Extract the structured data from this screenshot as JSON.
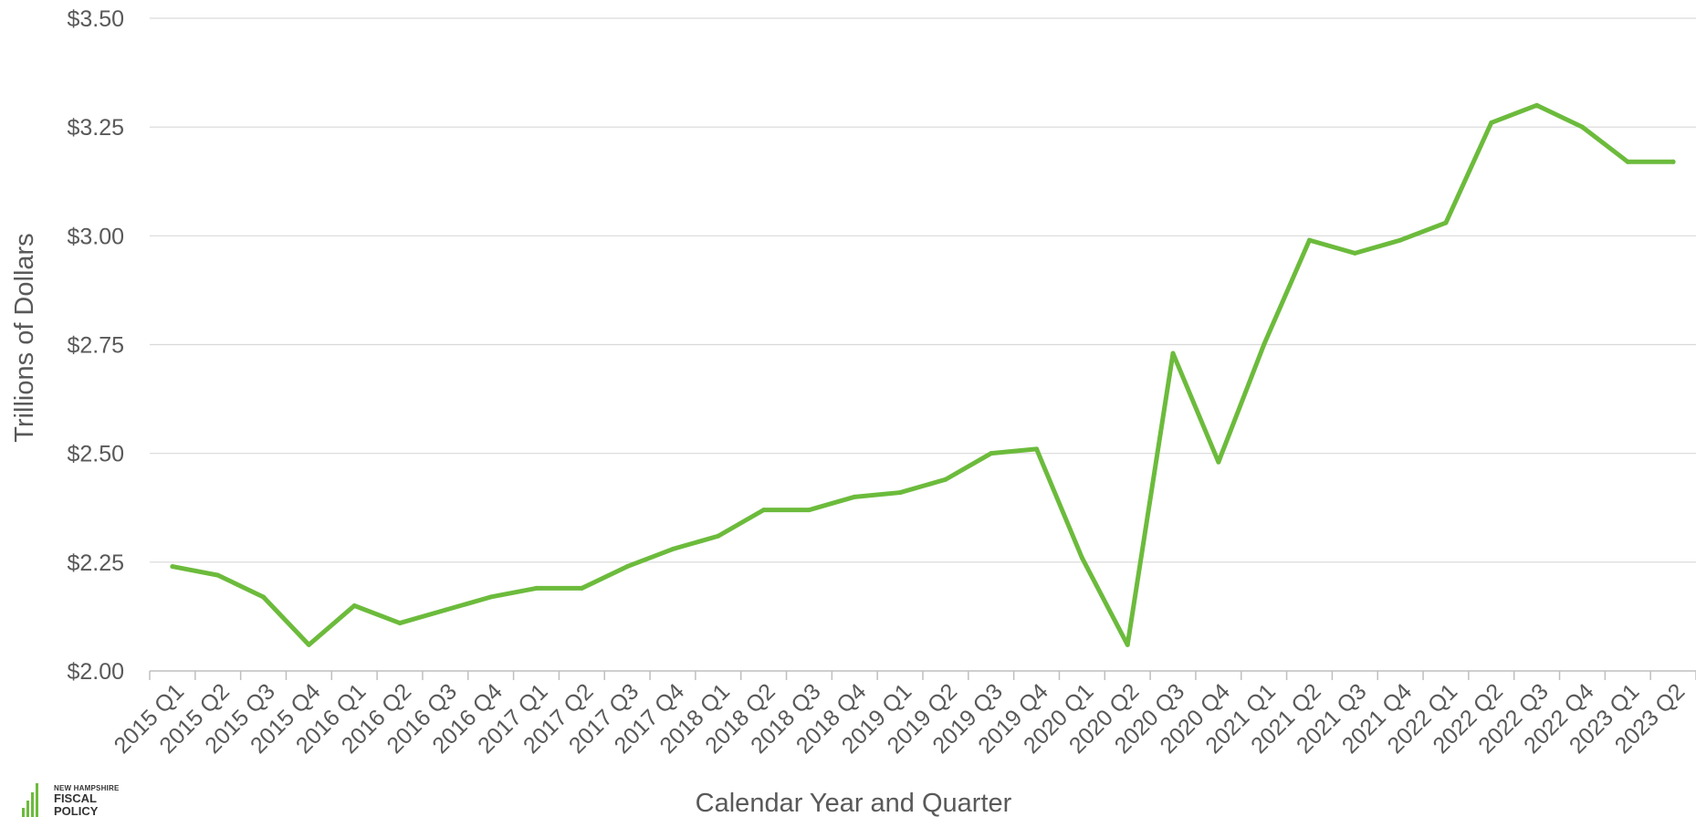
{
  "chart_data": {
    "type": "line",
    "title": "",
    "xlabel": "Calendar Year and Quarter",
    "ylabel": "Trillions of Dollars",
    "ylim": [
      2.0,
      3.5
    ],
    "yticks": [
      "$2.00",
      "$2.25",
      "$2.50",
      "$2.75",
      "$3.00",
      "$3.25",
      "$3.50"
    ],
    "grid": true,
    "color": "#6cbb3c",
    "categories": [
      "2015 Q1",
      "2015 Q2",
      "2015 Q3",
      "2015 Q4",
      "2016 Q1",
      "2016 Q2",
      "2016 Q3",
      "2016 Q4",
      "2017 Q1",
      "2017 Q2",
      "2017 Q3",
      "2017 Q4",
      "2018 Q1",
      "2018 Q2",
      "2018 Q3",
      "2018 Q4",
      "2019 Q1",
      "2019 Q2",
      "2019 Q3",
      "2019 Q4",
      "2020 Q1",
      "2020 Q2",
      "2020 Q3",
      "2020 Q4",
      "2021 Q1",
      "2021 Q2",
      "2021 Q3",
      "2021 Q4",
      "2022 Q1",
      "2022 Q2",
      "2022 Q3",
      "2022 Q4",
      "2023 Q1",
      "2023 Q2"
    ],
    "values": [
      2.24,
      2.22,
      2.17,
      2.06,
      2.15,
      2.11,
      2.14,
      2.17,
      2.19,
      2.19,
      2.24,
      2.28,
      2.31,
      2.37,
      2.37,
      2.4,
      2.41,
      2.44,
      2.5,
      2.51,
      2.26,
      2.06,
      2.73,
      2.48,
      2.75,
      2.99,
      2.96,
      2.99,
      3.03,
      3.26,
      3.3,
      3.25,
      3.17,
      3.17
    ]
  },
  "logo": {
    "line1": "NEW HAMPSHIRE",
    "line2": "FISCAL",
    "line3": "POLICY"
  }
}
